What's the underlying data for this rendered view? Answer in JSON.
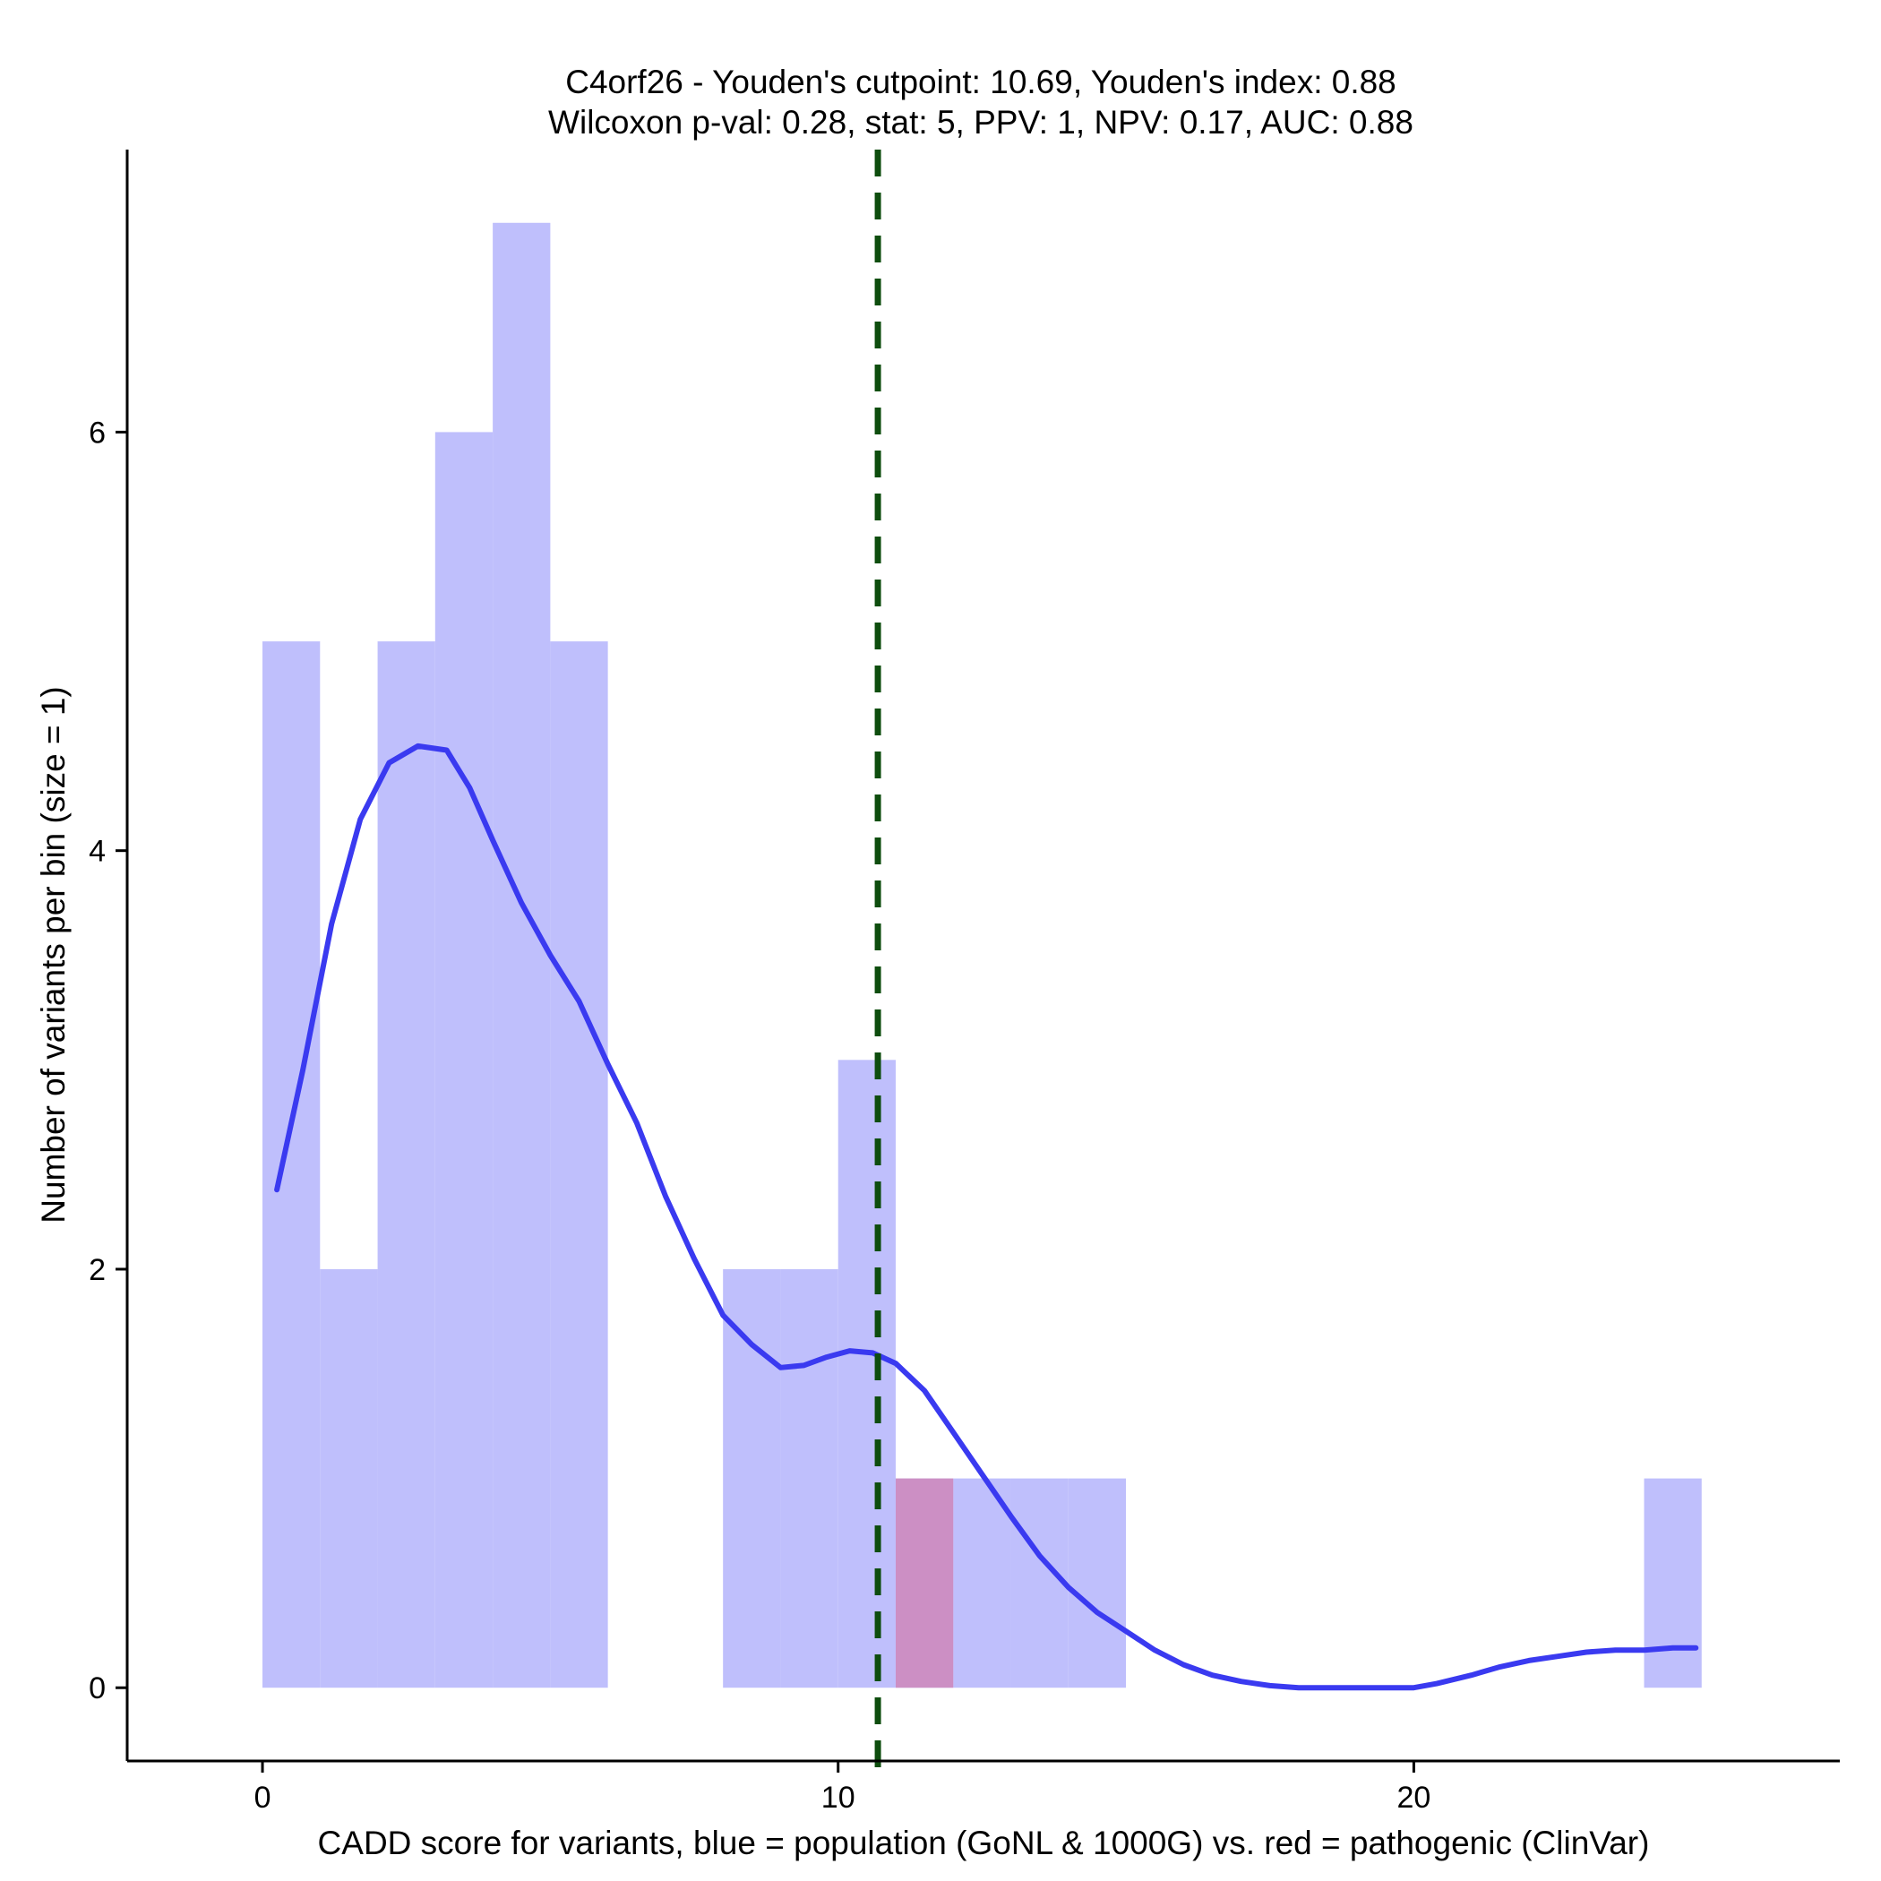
{
  "chart_data": {
    "type": "bar",
    "title": "C4orf26 - Youden's cutpoint: 10.69, Youden's index: 0.88",
    "subtitle": "Wilcoxon p-val: 0.28, stat: 5, PPV: 1, NPV: 0.17, AUC: 0.88",
    "xlabel": "CADD score for variants, blue = population (GoNL & 1000G) vs. red = pathogenic (ClinVar)",
    "ylabel": "Number of variants per bin (size = 1)",
    "xlim": [
      -2.35,
      27.4
    ],
    "ylim": [
      -0.35,
      7.35
    ],
    "x_ticks": [
      0,
      10,
      20
    ],
    "y_ticks": [
      0,
      2,
      4,
      6
    ],
    "bin_width": 1,
    "grid": false,
    "colors": {
      "population": "#bfbffc",
      "pathogenic": "#cc8fc4",
      "density": "#3a3af0",
      "cutpoint": "#0e4d0e"
    },
    "series": [
      {
        "key": "population",
        "bins": [
          {
            "x0": 0,
            "count": 5
          },
          {
            "x0": 1,
            "count": 2
          },
          {
            "x0": 2,
            "count": 5
          },
          {
            "x0": 3,
            "count": 6
          },
          {
            "x0": 4,
            "count": 7
          },
          {
            "x0": 5,
            "count": 5
          },
          {
            "x0": 8,
            "count": 2
          },
          {
            "x0": 9,
            "count": 2
          },
          {
            "x0": 10,
            "count": 3
          },
          {
            "x0": 11,
            "count": 1
          },
          {
            "x0": 12,
            "count": 1
          },
          {
            "x0": 13,
            "count": 1
          },
          {
            "x0": 14,
            "count": 1
          },
          {
            "x0": 24,
            "count": 1
          }
        ]
      },
      {
        "key": "pathogenic",
        "bins": [
          {
            "x0": 11,
            "count": 1
          }
        ]
      }
    ],
    "density": {
      "x": [
        0.25,
        0.7,
        1.2,
        1.7,
        2.2,
        2.7,
        3.2,
        3.6,
        4.0,
        4.5,
        5.0,
        5.5,
        6.0,
        6.5,
        7.0,
        7.5,
        8.0,
        8.5,
        9.0,
        9.4,
        9.8,
        10.2,
        10.6,
        11.0,
        11.5,
        12.0,
        12.5,
        13.0,
        13.5,
        14.0,
        14.5,
        15.0,
        15.5,
        16.0,
        16.5,
        17.0,
        17.5,
        18.0,
        18.4,
        19.0,
        19.5,
        20.0,
        20.4,
        21.0,
        21.5,
        22.0,
        22.5,
        23.0,
        23.5,
        24.0,
        24.5,
        24.9
      ],
      "y": [
        2.38,
        2.95,
        3.65,
        4.15,
        4.42,
        4.5,
        4.48,
        4.3,
        4.05,
        3.75,
        3.5,
        3.28,
        2.98,
        2.7,
        2.35,
        2.05,
        1.78,
        1.64,
        1.53,
        1.54,
        1.58,
        1.61,
        1.6,
        1.55,
        1.42,
        1.22,
        1.02,
        0.82,
        0.63,
        0.48,
        0.36,
        0.27,
        0.18,
        0.11,
        0.06,
        0.03,
        0.01,
        0.0,
        0.0,
        0.0,
        0.0,
        0.0,
        0.02,
        0.06,
        0.1,
        0.13,
        0.15,
        0.17,
        0.18,
        0.18,
        0.19,
        0.19
      ]
    },
    "cutpoint": 10.69
  }
}
